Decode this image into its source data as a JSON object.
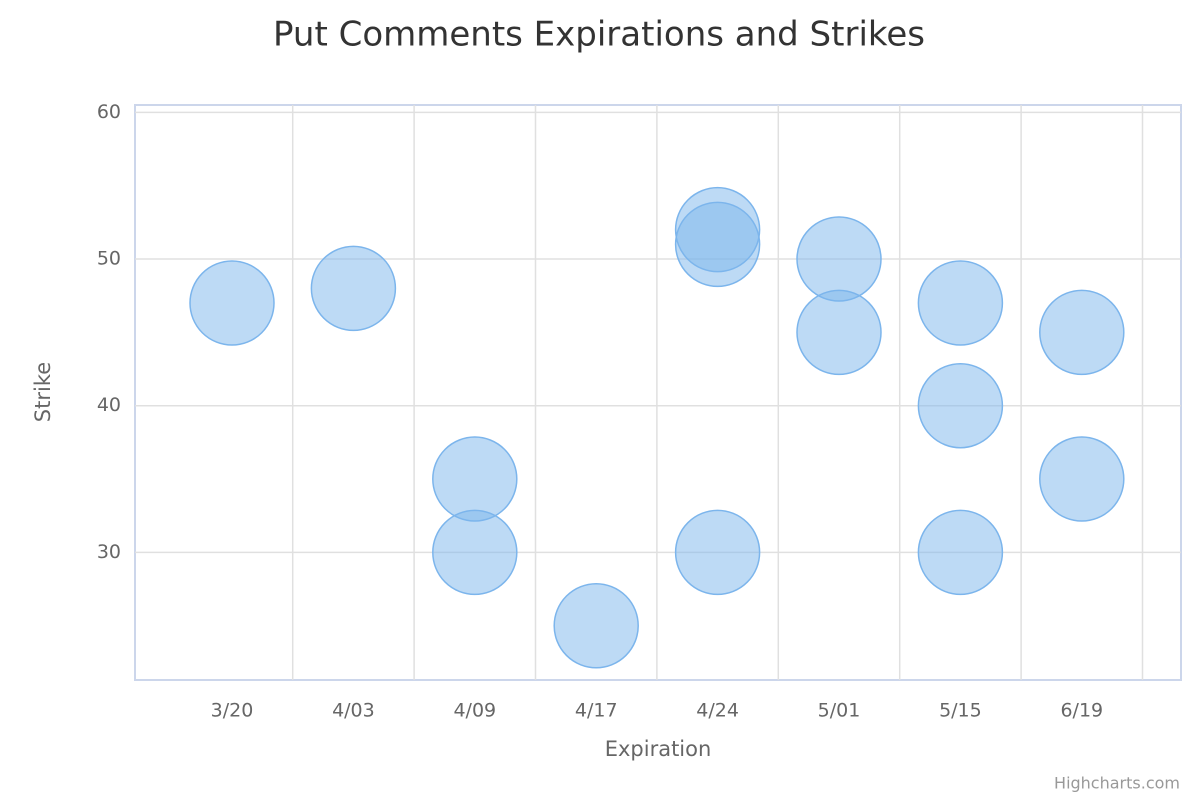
{
  "chart_data": {
    "type": "bubble",
    "title": "Put Comments Expirations and Strikes",
    "x_label": "Expiration",
    "y_label": "Strike",
    "credits": "Highcharts.com",
    "categories": [
      "3/20",
      "4/03",
      "4/09",
      "4/17",
      "4/24",
      "5/01",
      "5/15",
      "6/19"
    ],
    "series": [
      {
        "color": "#7cb5ec",
        "x": [
          "3/20",
          "4/03",
          "4/09",
          "4/09",
          "4/17",
          "4/24",
          "4/24",
          "4/24",
          "5/01",
          "5/01",
          "5/15",
          "5/15",
          "5/15",
          "6/19",
          "6/19"
        ],
        "values": [
          47,
          48,
          35,
          30,
          25,
          52,
          51,
          30,
          50,
          45,
          47,
          40,
          30,
          45,
          35
        ]
      }
    ],
    "ylim": [
      21.3,
      60.5
    ],
    "yticks": [
      30,
      40,
      50,
      60
    ],
    "grid": true
  }
}
